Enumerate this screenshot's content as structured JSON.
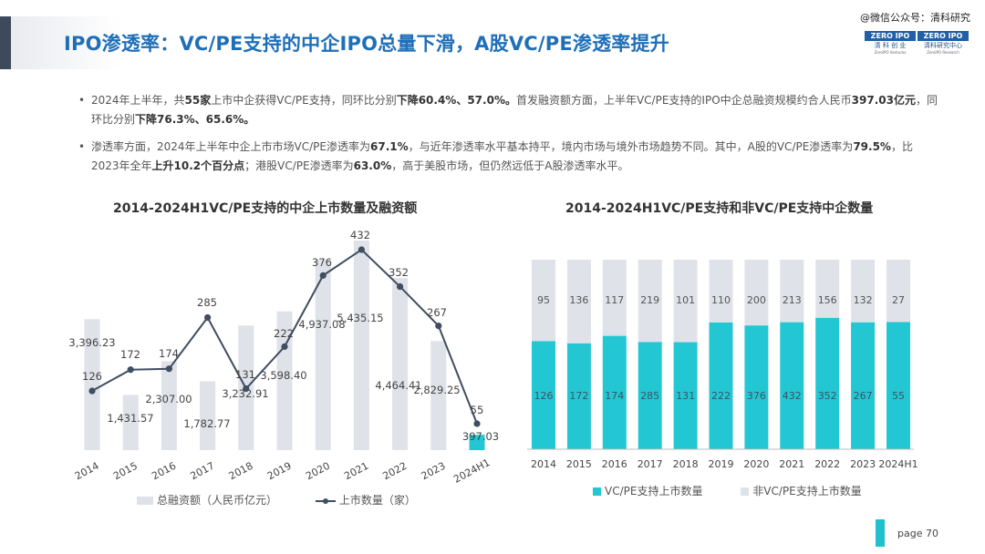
{
  "title": "IPO渗透率：VC/PE支持的中企IPO总量下滑，A股VC/PE渗透率提升",
  "watermark": "@微信公众号：清科研究",
  "logo": {
    "left_badge": "ZERO IPO",
    "left_line1": "清 科 创 业",
    "left_line2": "ZeroIPO Ventures",
    "right_badge": "ZERO IPO",
    "right_line1": "清科研究中心",
    "right_line2": "ZeroIPO Research"
  },
  "bullets": [
    [
      {
        "t": "2024年上半年，共",
        "b": false
      },
      {
        "t": "55家",
        "b": true
      },
      {
        "t": "上市中企获得VC/PE支持，同环比分别",
        "b": false
      },
      {
        "t": "下降60.4%、57.0%。",
        "b": true
      },
      {
        "t": "首发融资额方面，上半年VC/PE支持的IPO中企总融资规模约合人民币",
        "b": false
      },
      {
        "t": "397.03亿元",
        "b": true
      },
      {
        "t": "，同环比分别",
        "b": false
      },
      {
        "t": "下降76.3%、65.6%。",
        "b": true
      }
    ],
    [
      {
        "t": "渗透率方面，2024年上半年中企上市市场VC/PE渗透率为",
        "b": false
      },
      {
        "t": "67.1%",
        "b": true
      },
      {
        "t": "，与近年渗透率水平基本持平，境内市场与境外市场趋势不同。其中，A股的VC/PE渗透率为",
        "b": false
      },
      {
        "t": "79.5%",
        "b": true
      },
      {
        "t": "，比2023年全年",
        "b": false
      },
      {
        "t": "上升10.2个百分点",
        "b": true
      },
      {
        "t": "；港股VC/PE渗透率为",
        "b": false
      },
      {
        "t": "63.0%",
        "b": true
      },
      {
        "t": "，高于美股市场，但仍然远低于A股渗透率水平。",
        "b": false
      }
    ]
  ],
  "chart_left_title": "2014-2024H1VC/PE支持的中企上市数量及融资额",
  "chart_right_title": "2014-2024H1VC/PE支持和非VC/PE支持中企数量",
  "chart_data": [
    {
      "type": "bar",
      "title": "2014-2024H1VC/PE支持的中企上市数量及融资额",
      "categories": [
        "2014",
        "2015",
        "2016",
        "2017",
        "2018",
        "2019",
        "2020",
        "2021",
        "2022",
        "2023",
        "2024H1"
      ],
      "series": [
        {
          "name": "总融资额（人民币亿元）",
          "type": "bar",
          "values": [
            3396.23,
            1431.57,
            2307.0,
            1782.77,
            3232.91,
            3598.4,
            4937.08,
            5435.15,
            4464.41,
            2829.25,
            397.03
          ],
          "labels": [
            "3,396.23",
            "1,431.57",
            "2,307.00",
            "1,782.77",
            "3,232.91",
            "3,598.40",
            "4,937.08",
            "5,435.15",
            "4,464.41",
            "2,829.25",
            "397.03"
          ]
        },
        {
          "name": "上市数量（家）",
          "type": "line",
          "values": [
            126,
            172,
            174,
            285,
            131,
            222,
            376,
            432,
            352,
            267,
            55
          ]
        }
      ],
      "legend_position": "bottom"
    },
    {
      "type": "bar",
      "stacked": true,
      "title": "2014-2024H1VC/PE支持和非VC/PE支持中企数量",
      "categories": [
        "2014",
        "2015",
        "2016",
        "2017",
        "2018",
        "2019",
        "2020",
        "2021",
        "2022",
        "2023",
        "2024H1"
      ],
      "series": [
        {
          "name": "VC/PE支持上市数量",
          "values": [
            126,
            172,
            174,
            285,
            131,
            222,
            376,
            432,
            352,
            267,
            55
          ]
        },
        {
          "name": "非VC/PE支持上市数量",
          "values": [
            95,
            136,
            117,
            219,
            101,
            110,
            200,
            213,
            156,
            132,
            27
          ]
        }
      ],
      "legend_position": "bottom"
    }
  ],
  "colors": {
    "title": "#1f6fb8",
    "bar_light": "#dfe2e8",
    "line": "#3f4e60",
    "teal": "#22c7d3",
    "teal_light": "#dfe2e8",
    "bar_last": "#22c7d3"
  },
  "page_label": "page  70"
}
